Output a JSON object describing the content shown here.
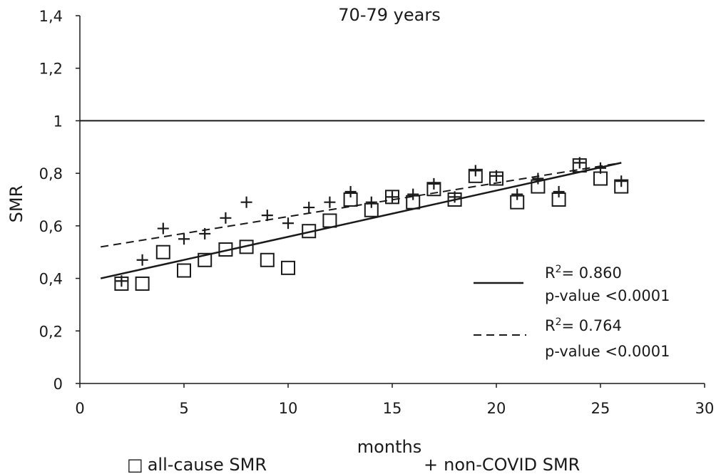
{
  "chart_data": {
    "type": "scatter",
    "title": "70-79 years",
    "xlabel": "months",
    "ylabel": "SMR",
    "xlim": [
      0,
      30
    ],
    "ylim": [
      0,
      1.4
    ],
    "x_ticks": [
      "0",
      "5",
      "10",
      "15",
      "20",
      "25",
      "30"
    ],
    "y_ticks": [
      "0",
      "0,2",
      "0,4",
      "0,6",
      "0,8",
      "1",
      "1,2",
      "1,4"
    ],
    "reference_line": {
      "y": 1
    },
    "grid": false,
    "series": [
      {
        "name": "all-cause SMR",
        "marker": "square",
        "x": [
          2,
          3,
          4,
          5,
          6,
          7,
          8,
          9,
          10,
          11,
          12,
          13,
          14,
          15,
          16,
          17,
          18,
          19,
          20,
          21,
          22,
          23,
          24,
          25,
          26
        ],
        "y": [
          0.38,
          0.38,
          0.5,
          0.43,
          0.47,
          0.51,
          0.52,
          0.47,
          0.44,
          0.58,
          0.62,
          0.7,
          0.66,
          0.71,
          0.69,
          0.74,
          0.7,
          0.79,
          0.78,
          0.69,
          0.75,
          0.7,
          0.83,
          0.78,
          0.75
        ],
        "trend": {
          "style": "solid",
          "x": [
            1,
            26
          ],
          "y": [
            0.4,
            0.84
          ]
        }
      },
      {
        "name": "non-COVID SMR",
        "marker": "plus",
        "x": [
          2,
          3,
          4,
          5,
          6,
          7,
          8,
          9,
          10,
          11,
          12,
          13,
          14,
          15,
          16,
          17,
          18,
          19,
          20,
          21,
          22,
          23,
          24,
          25,
          26
        ],
        "y": [
          0.39,
          0.47,
          0.59,
          0.55,
          0.57,
          0.63,
          0.69,
          0.64,
          0.61,
          0.67,
          0.69,
          0.73,
          0.69,
          0.71,
          0.72,
          0.76,
          0.71,
          0.81,
          0.79,
          0.72,
          0.78,
          0.73,
          0.84,
          0.82,
          0.77
        ],
        "trend": {
          "style": "dashed",
          "x": [
            1,
            26
          ],
          "y": [
            0.52,
            0.84
          ]
        }
      }
    ],
    "annotations": [
      {
        "line_style": "solid",
        "r2_prefix": "R",
        "r2_sup": "2",
        "r2_value": "= 0.860",
        "pvalue": "p-value <0.0001"
      },
      {
        "line_style": "dashed",
        "r2_prefix": "R",
        "r2_sup": "2",
        "r2_value": "= 0.764",
        "pvalue": "p-value <0.0001"
      }
    ],
    "legend": {
      "placement": "bottom",
      "items": [
        {
          "symbol": "□",
          "label": "all-cause SMR"
        },
        {
          "symbol": "+",
          "label": "non-COVID SMR"
        }
      ]
    }
  }
}
